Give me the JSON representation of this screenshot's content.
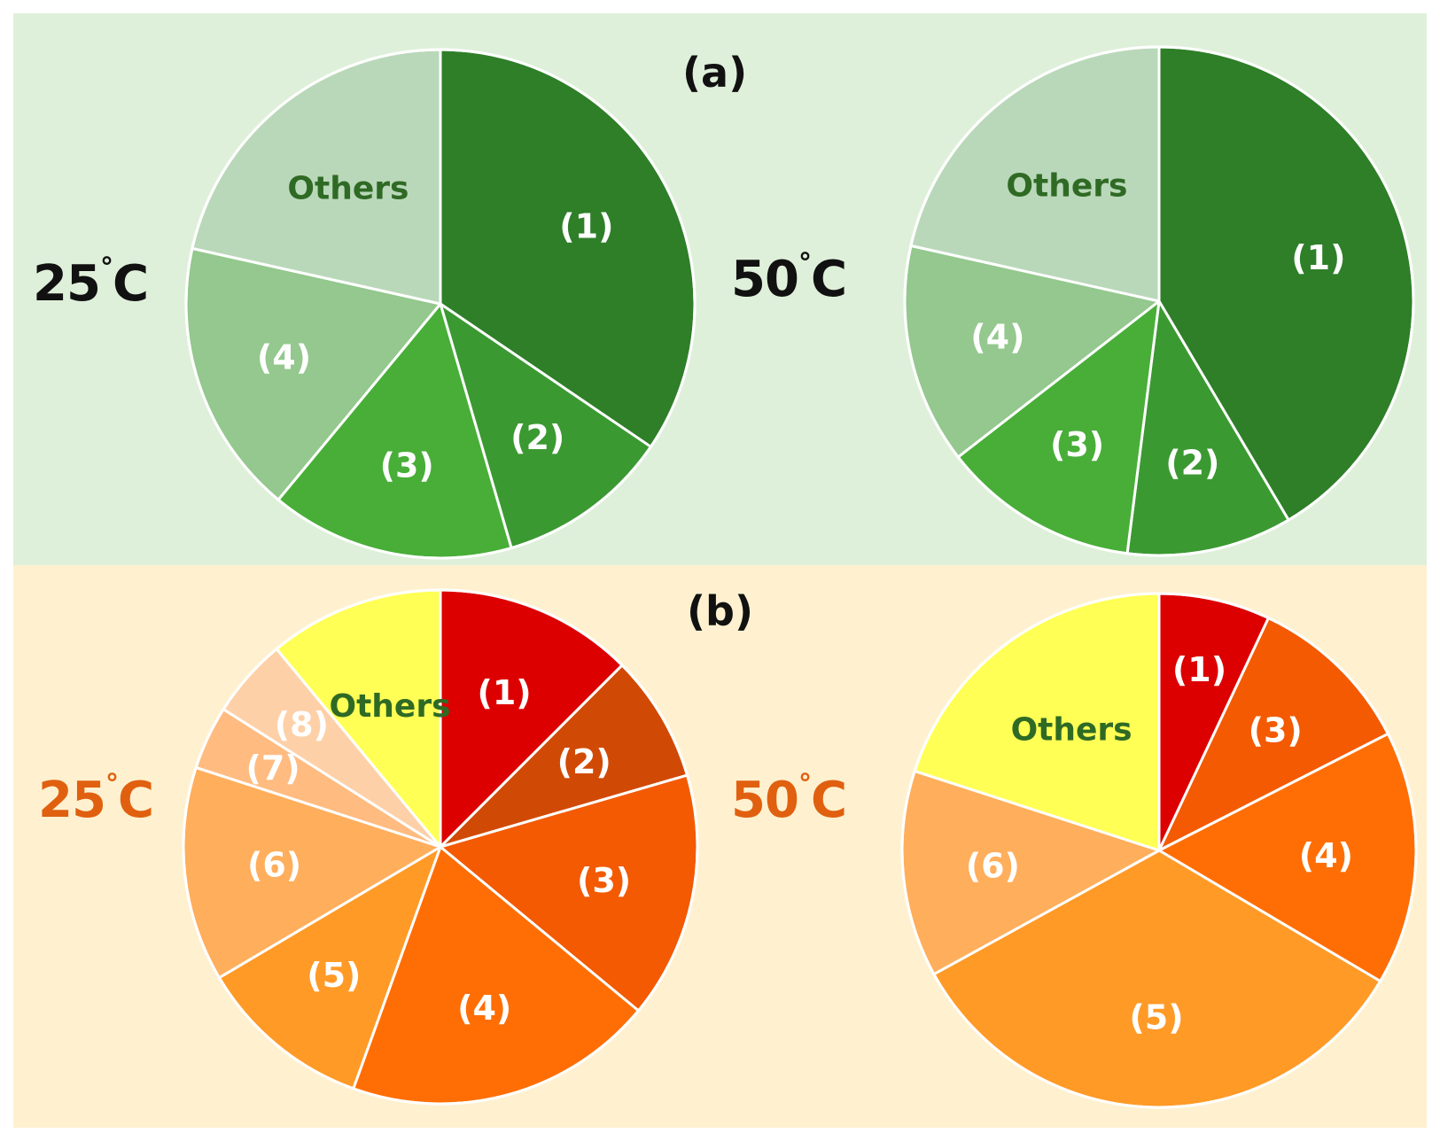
{
  "chart_data": [
    {
      "type": "pie",
      "panel": "a",
      "temperature": "25",
      "degree_symbol": "°",
      "unit": "C",
      "slices": [
        {
          "label": "(1)",
          "value": 34.5,
          "color": "#2e7f28",
          "text_color": "#ffffff"
        },
        {
          "label": "(2)",
          "value": 11.0,
          "color": "#3b9932",
          "text_color": "#ffffff"
        },
        {
          "label": "(3)",
          "value": 15.5,
          "color": "#48ae38",
          "text_color": "#ffffff"
        },
        {
          "label": "(4)",
          "value": 17.5,
          "color": "#94c88e",
          "text_color": "#ffffff"
        },
        {
          "label": "Others",
          "value": 21.5,
          "color": "#b9d8b9",
          "text_color": "#2f6a25"
        }
      ]
    },
    {
      "type": "pie",
      "panel": "a",
      "temperature": "50",
      "degree_symbol": "°",
      "unit": "C",
      "slices": [
        {
          "label": "(1)",
          "value": 41.5,
          "color": "#2e7f28",
          "text_color": "#ffffff"
        },
        {
          "label": "(2)",
          "value": 10.5,
          "color": "#3b9932",
          "text_color": "#ffffff"
        },
        {
          "label": "(3)",
          "value": 12.5,
          "color": "#48ae38",
          "text_color": "#ffffff"
        },
        {
          "label": "(4)",
          "value": 14.0,
          "color": "#94c88e",
          "text_color": "#ffffff"
        },
        {
          "label": "Others",
          "value": 21.5,
          "color": "#b9d8b9",
          "text_color": "#2f6a25"
        }
      ]
    },
    {
      "type": "pie",
      "panel": "b",
      "temperature": "25",
      "degree_symbol": "°",
      "unit": "C",
      "slices": [
        {
          "label": "(1)",
          "value": 12.5,
          "color": "#dd0000",
          "text_color": "#ffffff"
        },
        {
          "label": "(2)",
          "value": 8.0,
          "color": "#d14a05",
          "text_color": "#ffffff"
        },
        {
          "label": "(3)",
          "value": 15.5,
          "color": "#f35a02",
          "text_color": "#ffffff"
        },
        {
          "label": "(4)",
          "value": 19.5,
          "color": "#ff6e05",
          "text_color": "#ffffff"
        },
        {
          "label": "(5)",
          "value": 11.0,
          "color": "#ff9a27",
          "text_color": "#ffffff"
        },
        {
          "label": "(6)",
          "value": 13.5,
          "color": "#ffae5c",
          "text_color": "#ffffff"
        },
        {
          "label": "(7)",
          "value": 4.0,
          "color": "#ffbb80",
          "text_color": "#ffffff"
        },
        {
          "label": "(8)",
          "value": 5.0,
          "color": "#fed0a8",
          "text_color": "#ffffff"
        },
        {
          "label": "Others",
          "value": 11.0,
          "color": "#ffff55",
          "text_color": "#2f6a25"
        }
      ]
    },
    {
      "type": "pie",
      "panel": "b",
      "temperature": "50",
      "degree_symbol": "°",
      "unit": "C",
      "slices": [
        {
          "label": "(1)",
          "value": 7.0,
          "color": "#dd0000",
          "text_color": "#ffffff"
        },
        {
          "label": "(3)",
          "value": 10.5,
          "color": "#f35a02",
          "text_color": "#ffffff"
        },
        {
          "label": "(4)",
          "value": 16.0,
          "color": "#ff6e05",
          "text_color": "#ffffff"
        },
        {
          "label": "(5)",
          "value": 33.5,
          "color": "#ff9a27",
          "text_color": "#ffffff"
        },
        {
          "label": "(6)",
          "value": 13.0,
          "color": "#ffae5c",
          "text_color": "#ffffff"
        },
        {
          "label": "Others",
          "value": 20.0,
          "color": "#ffff55",
          "text_color": "#2f6a25"
        }
      ]
    }
  ],
  "panels": {
    "a": {
      "label": "(a)",
      "background": "#dff0da",
      "temp_color": "#111111"
    },
    "b": {
      "label": "(b)",
      "background": "#fff1d0",
      "temp_color": "#e06010"
    }
  }
}
